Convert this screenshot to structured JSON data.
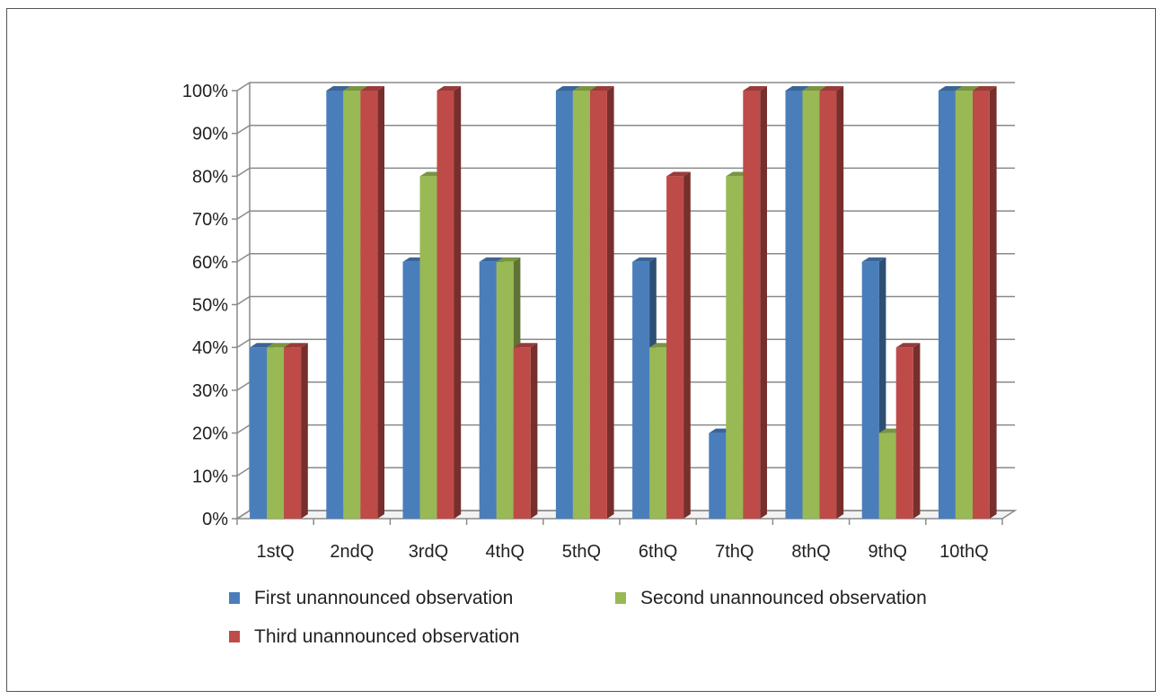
{
  "chart_data": {
    "type": "bar",
    "categories": [
      "1stQ",
      "2ndQ",
      "3rdQ",
      "4thQ",
      "5thQ",
      "6thQ",
      "7thQ",
      "8thQ",
      "9thQ",
      "10thQ"
    ],
    "series": [
      {
        "name": "First unannounced observation",
        "values": [
          40,
          100,
          60,
          60,
          100,
          60,
          20,
          100,
          60,
          100
        ],
        "color": "#4a7ebb"
      },
      {
        "name": "Second unannounced observation",
        "values": [
          40,
          100,
          80,
          60,
          100,
          40,
          80,
          100,
          20,
          100
        ],
        "color": "#98b954"
      },
      {
        "name": "Third unannounced observation",
        "values": [
          40,
          100,
          100,
          40,
          100,
          80,
          100,
          100,
          40,
          100
        ],
        "color": "#be4b48"
      }
    ],
    "yticks": [
      "0%",
      "10%",
      "20%",
      "30%",
      "40%",
      "50%",
      "60%",
      "70%",
      "80%",
      "90%",
      "100%"
    ],
    "ylim": [
      0,
      100
    ],
    "grid": true,
    "legend_position": "bottom",
    "title": "",
    "xlabel": "",
    "ylabel": ""
  }
}
